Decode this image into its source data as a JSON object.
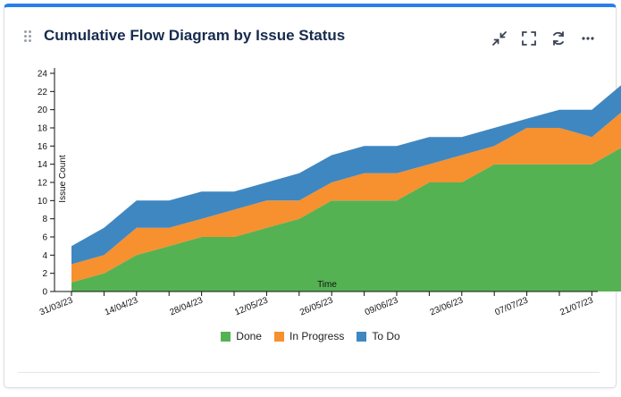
{
  "widget": {
    "title": "Cumulative Flow Diagram by Issue Status",
    "accent_color": "#2b7de9",
    "toolbar": [
      {
        "name": "collapse-icon",
        "label": "collapse"
      },
      {
        "name": "fullscreen-icon",
        "label": "fullscreen"
      },
      {
        "name": "refresh-icon",
        "label": "refresh"
      },
      {
        "name": "more-options-icon",
        "label": "more"
      }
    ]
  },
  "chart_data": {
    "type": "area",
    "stacked": true,
    "xlabel": "Time",
    "ylabel": "Issue Count",
    "ylim": [
      0,
      24
    ],
    "y_ticks": [
      0,
      2,
      4,
      6,
      8,
      10,
      12,
      14,
      16,
      18,
      20,
      22,
      24
    ],
    "x_tick_labels": [
      "31/03/23",
      "14/04/23",
      "28/04/23",
      "12/05/23",
      "26/05/23",
      "09/06/23",
      "23/06/23",
      "07/07/23",
      "21/07/23"
    ],
    "legend_position": "bottom",
    "x": [
      "31/03/23",
      "07/04/23",
      "14/04/23",
      "21/04/23",
      "28/04/23",
      "05/05/23",
      "12/05/23",
      "19/05/23",
      "26/05/23",
      "02/06/23",
      "09/06/23",
      "16/06/23",
      "23/06/23",
      "30/06/23",
      "07/07/23",
      "14/07/23",
      "21/07/23",
      "28/07/23"
    ],
    "series": [
      {
        "name": "Done",
        "color": "#55b253",
        "values": [
          1,
          2,
          4,
          5,
          6,
          6,
          7,
          8,
          10,
          10,
          10,
          12,
          12,
          14,
          14,
          14,
          14,
          16
        ]
      },
      {
        "name": "In Progress",
        "color": "#f7902e",
        "values": [
          2,
          2,
          3,
          2,
          2,
          3,
          3,
          2,
          2,
          3,
          3,
          2,
          3,
          2,
          4,
          4,
          3,
          4
        ]
      },
      {
        "name": "To Do",
        "color": "#3f87c1",
        "values": [
          2,
          3,
          3,
          3,
          3,
          2,
          2,
          3,
          3,
          3,
          3,
          3,
          2,
          2,
          1,
          2,
          3,
          3
        ]
      }
    ]
  }
}
